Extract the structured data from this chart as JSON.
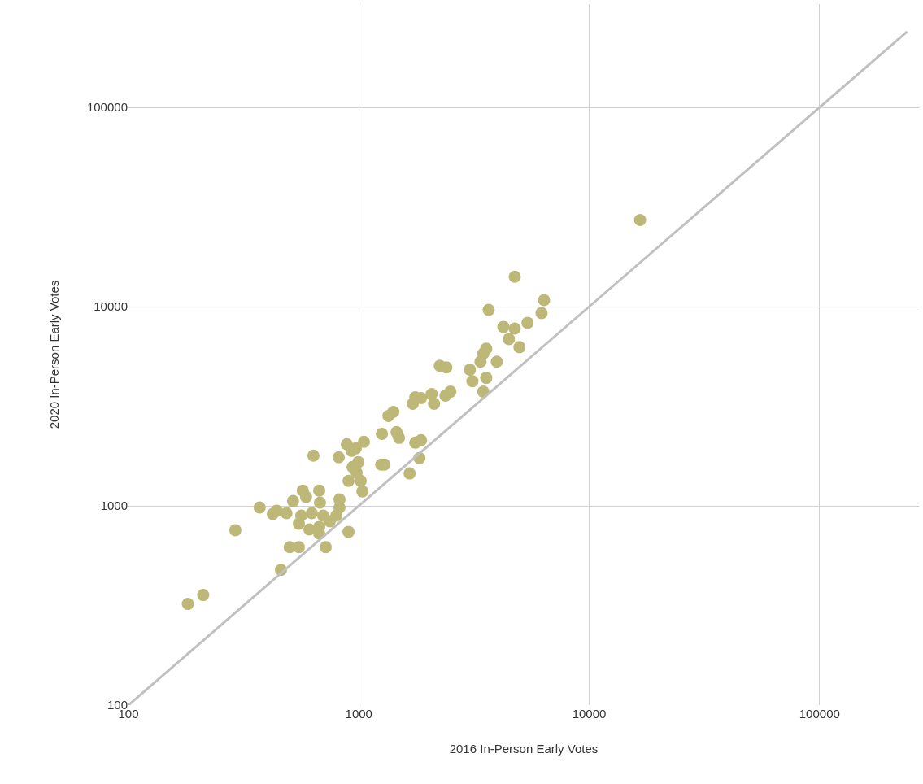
{
  "chart_data": {
    "type": "scatter",
    "xlabel": "2016 In-Person Early Votes",
    "ylabel": "2020 In-Person Early Votes",
    "log": "xy",
    "grid": true,
    "marker": "circle",
    "xlim": [
      100,
      270000
    ],
    "ylim": [
      100,
      330000
    ],
    "xticks": [
      100,
      1000,
      10000,
      100000
    ],
    "yticks": [
      100,
      1000,
      10000,
      100000
    ],
    "series": [
      {
        "color": "#bdb878",
        "x": [
          181,
          211,
          291,
          371,
          423,
          440,
          485,
          459,
          501,
          549,
          635,
          571,
          590,
          673,
          549,
          562,
          625,
          678,
          700,
          673,
          673,
          718,
          818,
          887,
          970,
          824,
          824,
          798,
          902,
          902,
          939,
          995,
          1036,
          1052,
          931,
          978,
          1019,
          1259,
          1458,
          1494,
          1250,
          1291,
          1661,
          1832,
          1758,
          1862,
          1344,
          1411,
          1716,
          1862,
          2070,
          2121,
          2245,
          2397,
          4752,
          6370,
          6210,
          3660,
          4240,
          4750,
          5400,
          4480,
          4980,
          3573,
          3470,
          3373,
          3970,
          3034,
          3112,
          3573,
          3470,
          2496,
          2377,
          1758,
          16630,
          518,
          748,
          610
        ],
        "values": [
          322,
          357,
          755,
          982,
          911,
          946,
          919,
          477,
          621,
          621,
          1786,
          1194,
          1109,
          1194,
          814,
          894,
          919,
          1038,
          894,
          784,
          727,
          621,
          1754,
          2037,
          1944,
          1078,
          982,
          894,
          741,
          1336,
          1567,
          1659,
          1183,
          2096,
          1889,
          1468,
          1336,
          2300,
          2344,
          2195,
          1612,
          1612,
          1455,
          1738,
          2075,
          2134,
          2828,
          2963,
          3253,
          3472,
          3640,
          3253,
          5047,
          4955,
          14130,
          10790,
          9277,
          9635,
          7914,
          7765,
          8294,
          6874,
          6261,
          6145,
          5810,
          5291,
          5291,
          4820,
          4227,
          4389,
          3743,
          3743,
          3573,
          3505,
          27230,
          1057,
          837,
          762
        ]
      },
      {
        "type": "line",
        "color": "#c0c0c0",
        "marker": "none",
        "x": [
          100,
          240000
        ],
        "values": [
          100,
          240000
        ]
      }
    ]
  }
}
